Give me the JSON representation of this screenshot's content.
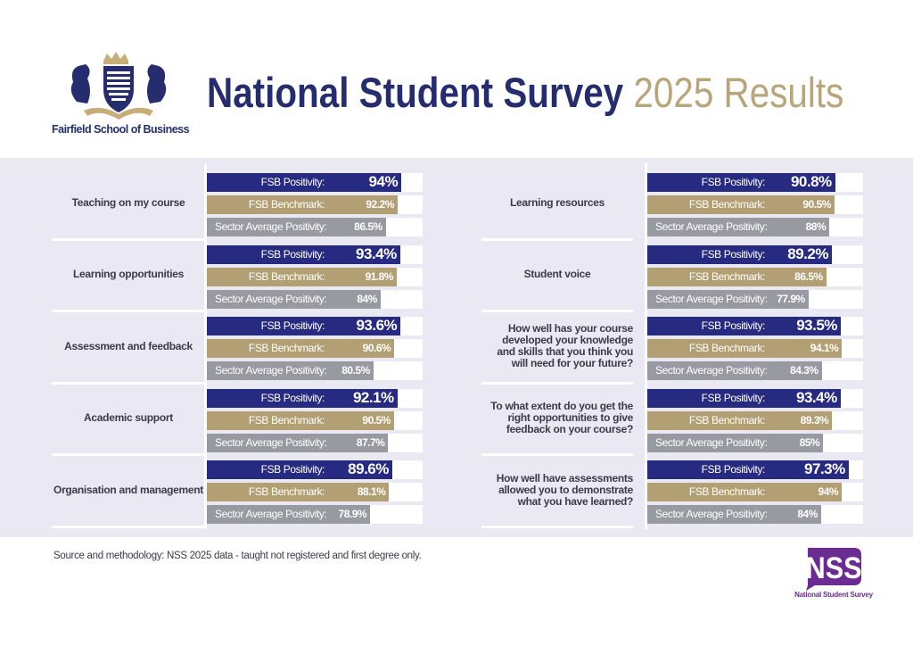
{
  "header": {
    "school_name": "Fairfield School of Business",
    "title_main": "National Student Survey",
    "title_year": "2025 Results"
  },
  "footer": {
    "source": "Source and methodology: NSS 2025 data - taught not registered and first degree only.",
    "nss_logo_text": "NSS",
    "nss_logo_subtext": "National Student Survey"
  },
  "colors": {
    "fsb_positivity": "#262a80",
    "fsb_benchmark": "#b29f73",
    "sector_average": "#979aa1",
    "background": "#e9e8f3"
  },
  "chart_data": {
    "type": "bar",
    "orientation": "horizontal",
    "xlim": [
      0,
      100
    ],
    "unit": "%",
    "series_labels": [
      "FSB Positivity:",
      "FSB Benchmark:",
      "Sector Average Positivity:"
    ],
    "questions": [
      {
        "label": "Teaching on my course",
        "values": [
          94,
          92.2,
          86.5
        ],
        "display": [
          "94%",
          "92.2%",
          "86.5%"
        ]
      },
      {
        "label": "Learning opportunities",
        "values": [
          93.4,
          91.8,
          84
        ],
        "display": [
          "93.4%",
          "91.8%",
          "84%"
        ]
      },
      {
        "label": "Assessment and feedback",
        "values": [
          93.6,
          90.6,
          80.5
        ],
        "display": [
          "93.6%",
          "90.6%",
          "80.5%"
        ]
      },
      {
        "label": "Academic support",
        "values": [
          92.1,
          90.5,
          87.7
        ],
        "display": [
          "92.1%",
          "90.5%",
          "87.7%"
        ]
      },
      {
        "label": "Organisation and management",
        "values": [
          89.6,
          88.1,
          78.9
        ],
        "display": [
          "89.6%",
          "88.1%",
          "78.9%"
        ]
      },
      {
        "label": "Learning resources",
        "values": [
          90.8,
          90.5,
          88
        ],
        "display": [
          "90.8%",
          "90.5%",
          "88%"
        ]
      },
      {
        "label": "Student voice",
        "values": [
          89.2,
          86.5,
          77.9
        ],
        "display": [
          "89.2%",
          "86.5%",
          "77.9%"
        ]
      },
      {
        "label": "How well has your course developed your knowledge and skills that you think you will need for your future?",
        "values": [
          93.5,
          94.1,
          84.3
        ],
        "display": [
          "93.5%",
          "94.1%",
          "84.3%"
        ]
      },
      {
        "label": "To what extent do you get the right opportunities to give feedback on your course?",
        "values": [
          93.4,
          89.3,
          85
        ],
        "display": [
          "93.4%",
          "89.3%",
          "85%"
        ]
      },
      {
        "label": "How well have assessments allowed you to demonstrate what you have learned?",
        "values": [
          97.3,
          94,
          84
        ],
        "display": [
          "97.3%",
          "94%",
          "84%"
        ]
      }
    ]
  }
}
